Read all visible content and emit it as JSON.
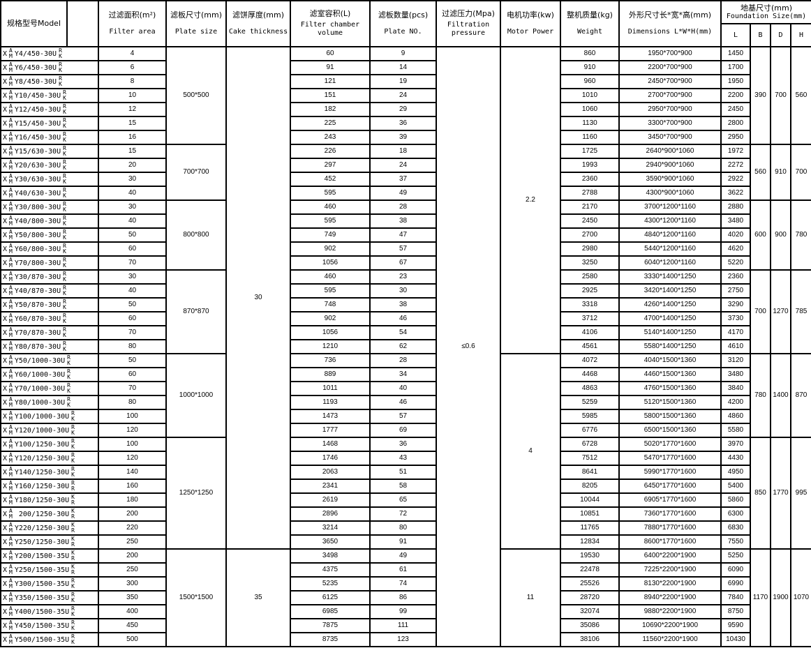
{
  "header": {
    "model": "规格型号Model",
    "filter_area": {
      "cn": "过滤面积(m²)",
      "en": "Filter area"
    },
    "plate_size": {
      "cn": "滤板尺寸(mm)",
      "en": "Plate size"
    },
    "cake": {
      "cn": "滤饼厚度(mm)",
      "en": "Cake thickness"
    },
    "chamber": {
      "cn": "滤室容积(L)",
      "en": "Filter chamber volume"
    },
    "plates": {
      "cn": "滤板数量(pcs)",
      "en": "Plate NO."
    },
    "pressure": {
      "cn": "过滤压力(Mpa)",
      "en": "Filtration pressure"
    },
    "motor": {
      "cn": "电机功率(kw)",
      "en": "Motor Power"
    },
    "weight": {
      "cn": "整机质量(kg)",
      "en": "Weight"
    },
    "dims": {
      "cn": "外形尺寸长*宽*高(mm)",
      "en": "Dimensions L*W*H(mm)"
    },
    "foundation": {
      "cn": "地基尺寸(mm)",
      "en": "Foundation Size(mm)",
      "cols": [
        "L",
        "B",
        "D",
        "H"
      ]
    }
  },
  "groups": [
    {
      "plate_size": "500*500",
      "B": "390",
      "D": "700",
      "H": "560",
      "rows": [
        [
          "Y4/450-30U",
          "RK",
          "4",
          "60",
          "9",
          "860",
          "1950*700*900",
          "1450"
        ],
        [
          "Y6/450-30U",
          "RK",
          "6",
          "91",
          "14",
          "910",
          "2200*700*900",
          "1700"
        ],
        [
          "Y8/450-30U",
          "RK",
          "8",
          "121",
          "19",
          "960",
          "2450*700*900",
          "1950"
        ],
        [
          "Y10/450-30U",
          "RK",
          "10",
          "151",
          "24",
          "1010",
          "2700*700*900",
          "2200"
        ],
        [
          "Y12/450-30U",
          "RK",
          "12",
          "182",
          "29",
          "1060",
          "2950*700*900",
          "2450"
        ],
        [
          "Y15/450-30U",
          "RK",
          "15",
          "225",
          "36",
          "1130",
          "3300*700*900",
          "2800"
        ],
        [
          "Y16/450-30U",
          "RK",
          "16",
          "243",
          "39",
          "1160",
          "3450*700*900",
          "2950"
        ]
      ]
    },
    {
      "plate_size": "700*700",
      "B": "560",
      "D": "910",
      "H": "700",
      "rows": [
        [
          "Y15/630-30U",
          "RK",
          "15",
          "226",
          "18",
          "1725",
          "2640*900*1060",
          "1972"
        ],
        [
          "Y20/630-30U",
          "RK",
          "20",
          "297",
          "24",
          "1993",
          "2940*900*1060",
          "2272"
        ],
        [
          "Y30/630-30U",
          "RK",
          "30",
          "452",
          "37",
          "2360",
          "3590*900*1060",
          "2922"
        ],
        [
          "Y40/630-30U",
          "RK",
          "40",
          "595",
          "49",
          "2788",
          "4300*900*1060",
          "3622"
        ]
      ]
    },
    {
      "plate_size": "800*800",
      "B": "600",
      "D": "900",
      "H": "780",
      "rows": [
        [
          "Y30/800-30U",
          "RK",
          "30",
          "460",
          "28",
          "2170",
          "3700*1200*1160",
          "2880"
        ],
        [
          "Y40/800-30U",
          "RK",
          "40",
          "595",
          "38",
          "2450",
          "4300*1200*1160",
          "3480"
        ],
        [
          "Y50/800-30U",
          "RK",
          "50",
          "749",
          "47",
          "2700",
          "4840*1200*1160",
          "4020"
        ],
        [
          "Y60/800-30U",
          "RK",
          "60",
          "902",
          "57",
          "2980",
          "5440*1200*1160",
          "4620"
        ],
        [
          "Y70/800-30U",
          "RK",
          "70",
          "1056",
          "67",
          "3250",
          "6040*1200*1160",
          "5220"
        ]
      ]
    },
    {
      "plate_size": "870*870",
      "B": "700",
      "D": "1270",
      "H": "785",
      "rows": [
        [
          "Y30/870-30U",
          "RK",
          "30",
          "460",
          "23",
          "2580",
          "3330*1400*1250",
          "2360"
        ],
        [
          "Y40/870-30U",
          "RK",
          "40",
          "595",
          "30",
          "2925",
          "3420*1400*1250",
          "2750"
        ],
        [
          "Y50/870-30U",
          "RK",
          "50",
          "748",
          "38",
          "3318",
          "4260*1400*1250",
          "3290"
        ],
        [
          "Y60/870-30U",
          "RK",
          "60",
          "902",
          "46",
          "3712",
          "4700*1400*1250",
          "3730"
        ],
        [
          "Y70/870-30U",
          "RK",
          "70",
          "1056",
          "54",
          "4106",
          "5140*1400*1250",
          "4170"
        ],
        [
          "Y80/870-30U",
          "RK",
          "80",
          "1210",
          "62",
          "4561",
          "5580*1400*1250",
          "4610"
        ]
      ]
    },
    {
      "plate_size": "1000*1000",
      "B": "780",
      "D": "1400",
      "H": "870",
      "rows": [
        [
          "Y50/1000-30U",
          "RK",
          "50",
          "736",
          "28",
          "4072",
          "4040*1500*1360",
          "3120"
        ],
        [
          "Y60/1000-30U",
          "RK",
          "60",
          "889",
          "34",
          "4468",
          "4460*1500*1360",
          "3480"
        ],
        [
          "Y70/1000-30U",
          "RK",
          "70",
          "1011",
          "40",
          "4863",
          "4760*1500*1360",
          "3840"
        ],
        [
          "Y80/1000-30U",
          "RK",
          "80",
          "1193",
          "46",
          "5259",
          "5120*1500*1360",
          "4200"
        ],
        [
          "Y100/1000-30U",
          "RK",
          "100",
          "1473",
          "57",
          "5985",
          "5800*1500*1360",
          "4860"
        ],
        [
          "Y120/1000-30U",
          "RK",
          "120",
          "1777",
          "69",
          "6776",
          "6500*1500*1360",
          "5580"
        ]
      ]
    },
    {
      "plate_size": "1250*1250",
      "B": "850",
      "D": "1770",
      "H": "995",
      "rows": [
        [
          "Y100/1250-30U",
          "RK",
          "100",
          "1468",
          "36",
          "6728",
          "5020*1770*1600",
          "3970"
        ],
        [
          "Y120/1250-30U",
          "RK",
          "120",
          "1746",
          "43",
          "7512",
          "5470*1770*1600",
          "4430"
        ],
        [
          "Y140/1250-30U",
          "RK",
          "140",
          "2063",
          "51",
          "8641",
          "5990*1770*1600",
          "4950"
        ],
        [
          "Y160/1250-30U",
          "RR",
          "160",
          "2341",
          "58",
          "8205",
          "6450*1770*1600",
          "5400"
        ],
        [
          "Y180/1250-30U",
          "KR",
          "180",
          "2619",
          "65",
          "10044",
          "6905*1770*1600",
          "5860"
        ],
        [
          " 200/1250-30U",
          "KR",
          "200",
          "2896",
          "72",
          "10851",
          "7360*1770*1600",
          "6300"
        ],
        [
          "Y220/1250-30U",
          "KR",
          "220",
          "3214",
          "80",
          "11765",
          "7880*1770*1600",
          "6830"
        ],
        [
          "Y250/1250-30U",
          "KR",
          "250",
          "3650",
          "91",
          "12834",
          "8600*1770*1600",
          "7550"
        ]
      ]
    },
    {
      "plate_size": "1500*1500",
      "B": "1170",
      "D": "1900",
      "H": "1070",
      "rows": [
        [
          "Y200/1500-35U",
          "KR",
          "200",
          "3498",
          "49",
          "19530",
          "6400*2200*1900",
          "5250"
        ],
        [
          "Y250/1500-35U",
          "KR",
          "250",
          "4375",
          "61",
          "22478",
          "7225*2200*1900",
          "6090"
        ],
        [
          "Y300/1500-35U",
          "RK",
          "300",
          "5235",
          "74",
          "25526",
          "8130*2200*1900",
          "6990"
        ],
        [
          "Y350/1500-35U",
          "RK",
          "350",
          "6125",
          "86",
          "28720",
          "8940*2200*1900",
          "7840"
        ],
        [
          "Y400/1500-35U",
          "RK",
          "400",
          "6985",
          "99",
          "32074",
          "9880*2200*1900",
          "8750"
        ],
        [
          "Y450/1500-35U",
          "RK",
          "450",
          "7875",
          "111",
          "35086",
          "10690*2200*1900",
          "9590"
        ],
        [
          "Y500/1500-35U",
          "RK",
          "500",
          "8735",
          "123",
          "38106",
          "11560*2200*1900",
          "10430"
        ]
      ]
    }
  ],
  "model_prefix": "X",
  "model_sup": "A",
  "model_sub": "M",
  "cake_spans": [
    {
      "value": "30",
      "groups": 6
    },
    {
      "value": "35",
      "groups": 1
    }
  ],
  "pressure": "≤0.6",
  "motor_spans": [
    {
      "value": "2.2",
      "groups": 4
    },
    {
      "value": "4",
      "groups": 2
    },
    {
      "value": "11",
      "groups": 1
    }
  ]
}
